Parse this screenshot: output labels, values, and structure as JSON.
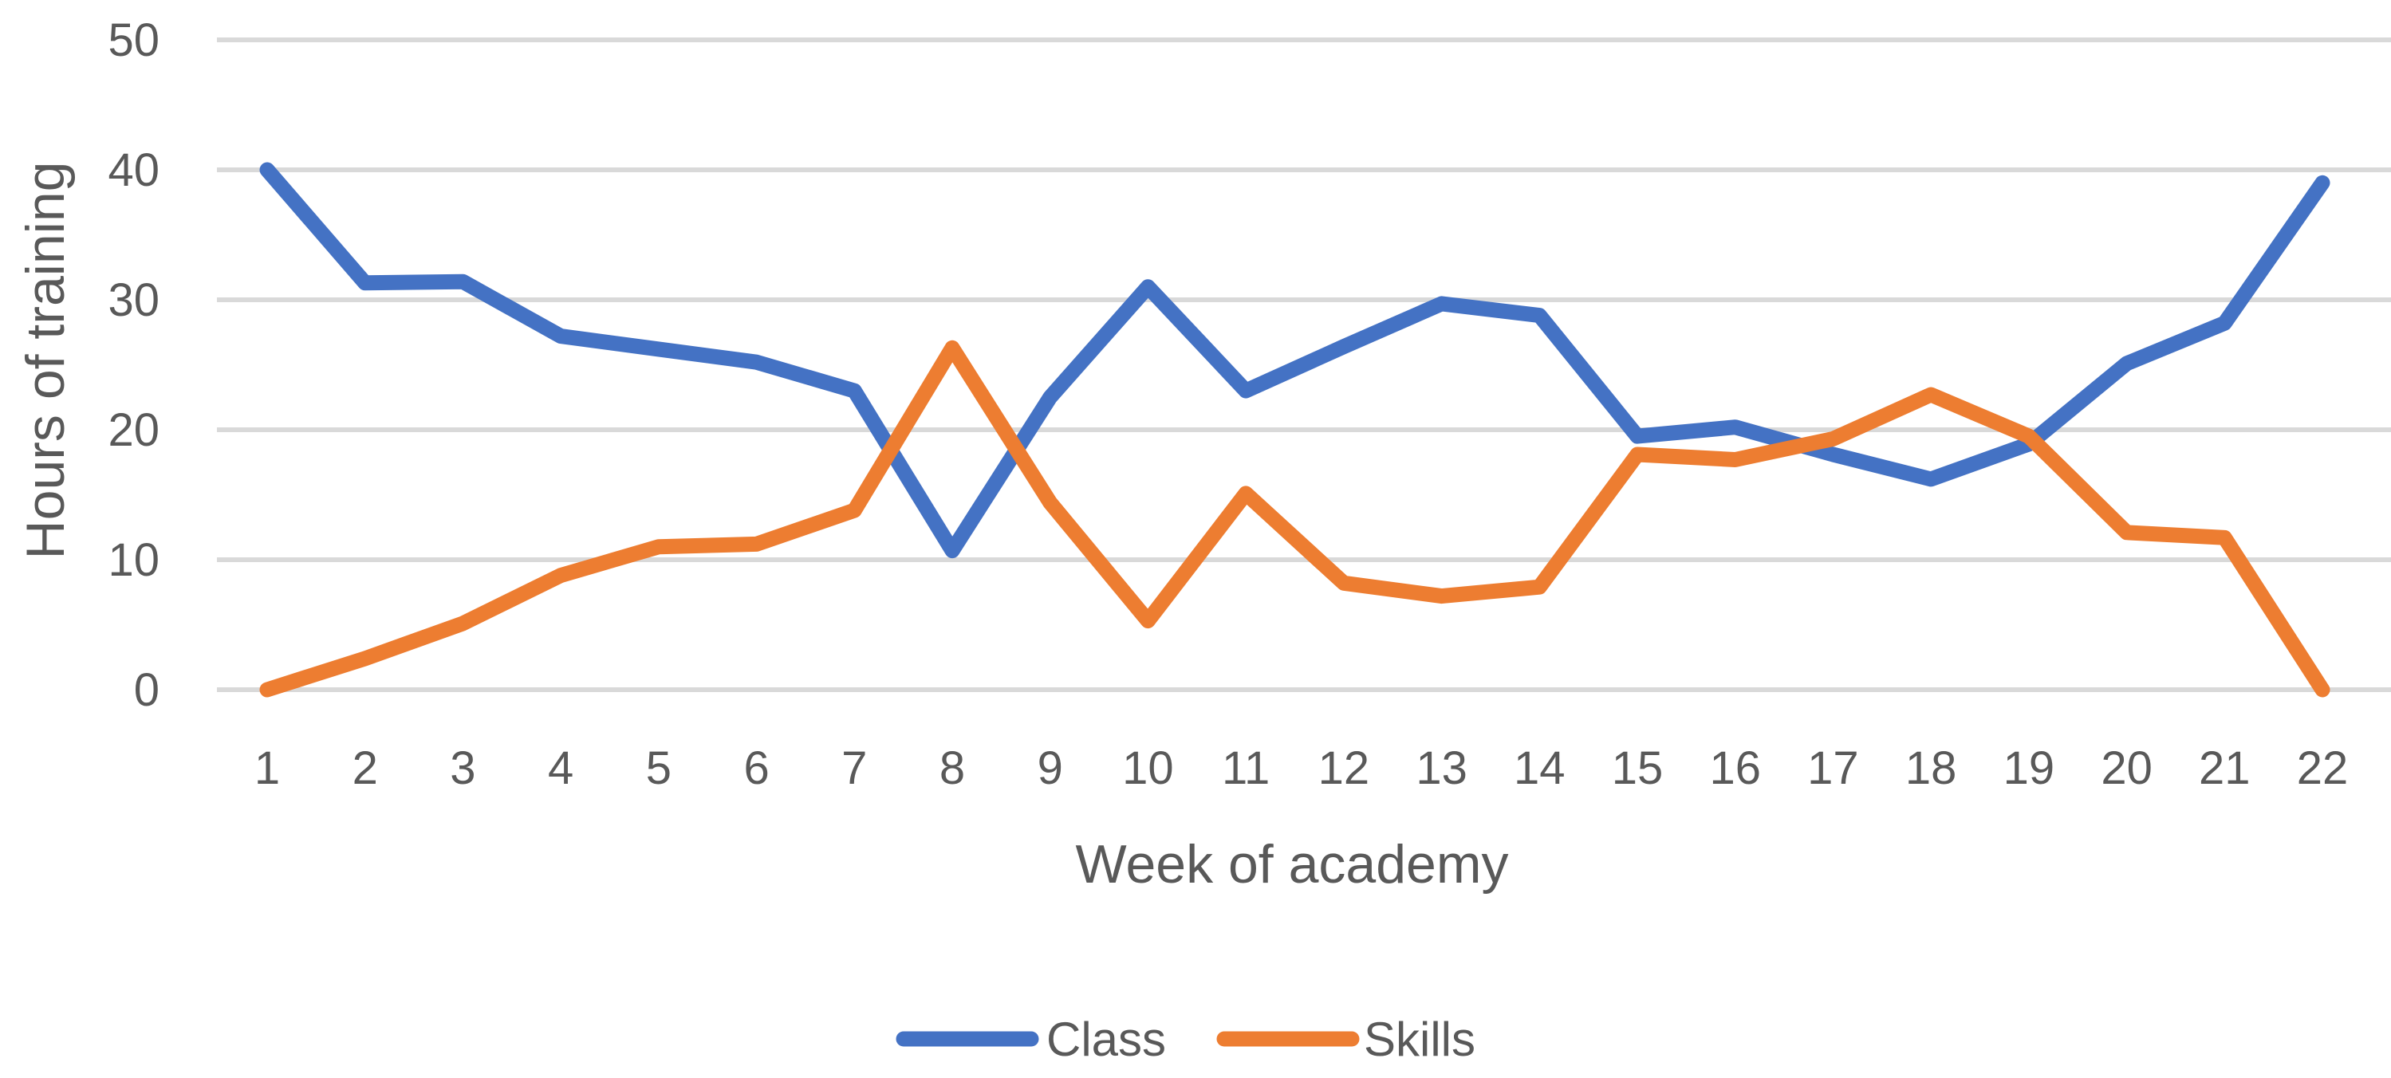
{
  "chart_data": {
    "type": "line",
    "title": "",
    "xlabel": "Week of academy",
    "ylabel": "Hours of training",
    "x": [
      1,
      2,
      3,
      4,
      5,
      6,
      7,
      8,
      9,
      10,
      11,
      12,
      13,
      14,
      15,
      16,
      17,
      18,
      19,
      20,
      21,
      22
    ],
    "ylim": [
      0,
      50
    ],
    "yticks": [
      0,
      10,
      20,
      30,
      40,
      50
    ],
    "grid": true,
    "legend": "bottom",
    "series": [
      {
        "name": "Class",
        "color": "#4472c4",
        "values": [
          40,
          31.3,
          31.4,
          27.2,
          26.2,
          25.2,
          23,
          10.7,
          22.5,
          31,
          23,
          26.4,
          29.7,
          28.8,
          19.5,
          20.2,
          18.1,
          16.2,
          18.9,
          25.1,
          28.2,
          39
        ]
      },
      {
        "name": "Skills",
        "color": "#ed7d31",
        "values": [
          0,
          2.4,
          5.1,
          8.8,
          11,
          11.2,
          13.8,
          26.3,
          14.4,
          5.3,
          15.1,
          8.2,
          7.2,
          7.9,
          18.1,
          17.7,
          19.3,
          22.7,
          19.5,
          12.1,
          11.7,
          0
        ]
      }
    ]
  }
}
